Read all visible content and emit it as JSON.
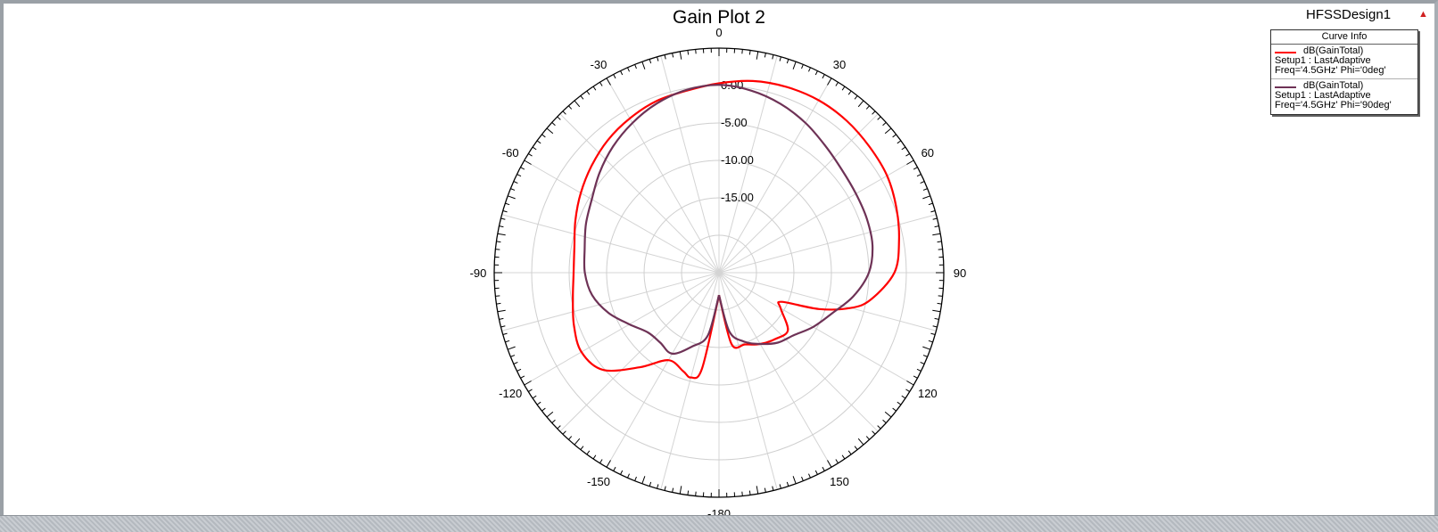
{
  "design_name": "HFSSDesign1",
  "legend": {
    "title": "Curve Info",
    "entries": [
      {
        "name": "dB(GainTotal)",
        "line2": "Setup1 : LastAdaptive",
        "line3": "Freq='4.5GHz' Phi='0deg'",
        "color": "#ff0000"
      },
      {
        "name": "dB(GainTotal)",
        "line2": "Setup1 : LastAdaptive",
        "line3": "Freq='4.5GHz' Phi='90deg'",
        "color": "#6e3256"
      }
    ]
  },
  "chart_data": {
    "type": "polar-line",
    "title": "Gain Plot 2",
    "angle_unit": "deg",
    "angle_ticks": [
      "0",
      "30",
      "60",
      "90",
      "120",
      "150",
      "-180",
      "-150",
      "-120",
      "-90",
      "-60",
      "-30"
    ],
    "radial_ticks": [
      "0.00",
      "-5.00",
      "-10.00",
      "-15.00"
    ],
    "radial_range": [
      -25,
      5
    ],
    "grid": true,
    "legend_position": "top-right",
    "series": [
      {
        "name": "dB(GainTotal) Setup1 : LastAdaptive Freq='4.5GHz' Phi='0deg'",
        "color": "#ff0000",
        "theta": [
          -180,
          -170,
          -165,
          -160,
          -150,
          -140,
          -130,
          -120,
          -110,
          -100,
          -90,
          -80,
          -70,
          -60,
          -50,
          -40,
          -30,
          -20,
          -10,
          0,
          10,
          20,
          30,
          40,
          50,
          60,
          70,
          80,
          90,
          100,
          105,
          110,
          115,
          120,
          130,
          140,
          150,
          160,
          170,
          180
        ],
        "gain": [
          -22,
          -12,
          -10.5,
          -11,
          -11.5,
          -8.5,
          -4.8,
          -3.8,
          -4.4,
          -5.2,
          -5.6,
          -5.4,
          -4.6,
          -3.7,
          -2.8,
          -1.9,
          -1.2,
          -0.6,
          -0.3,
          0.3,
          1.0,
          1.4,
          1.6,
          1.5,
          1.2,
          0.9,
          0.2,
          -0.6,
          -1.6,
          -4.4,
          -6.8,
          -10.8,
          -15.8,
          -15.5,
          -13,
          -13.4,
          -14,
          -14.8,
          -15.3,
          -22
        ]
      },
      {
        "name": "dB(GainTotal) Setup1 : LastAdaptive Freq='4.5GHz' Phi='90deg'",
        "color": "#6e3256",
        "theta": [
          -180,
          -170,
          -160,
          -150,
          -140,
          -130,
          -120,
          -110,
          -100,
          -90,
          -80,
          -70,
          -60,
          -50,
          -40,
          -30,
          -20,
          -10,
          0,
          10,
          20,
          30,
          40,
          50,
          60,
          70,
          80,
          90,
          100,
          110,
          120,
          130,
          140,
          150,
          160,
          170,
          180
        ],
        "gain": [
          -22,
          -16.5,
          -14.5,
          -12.5,
          -12.8,
          -12.6,
          -11.2,
          -9.3,
          -7.8,
          -7.1,
          -6.8,
          -6.1,
          -5.4,
          -4.2,
          -3.0,
          -1.9,
          -0.9,
          -0.2,
          0.1,
          -0.3,
          -1.0,
          -1.9,
          -2.9,
          -3.6,
          -3.9,
          -4.0,
          -4.2,
          -5.0,
          -6.8,
          -9.0,
          -10.5,
          -12.0,
          -12.8,
          -14.0,
          -15.2,
          -17,
          -22
        ]
      }
    ]
  }
}
